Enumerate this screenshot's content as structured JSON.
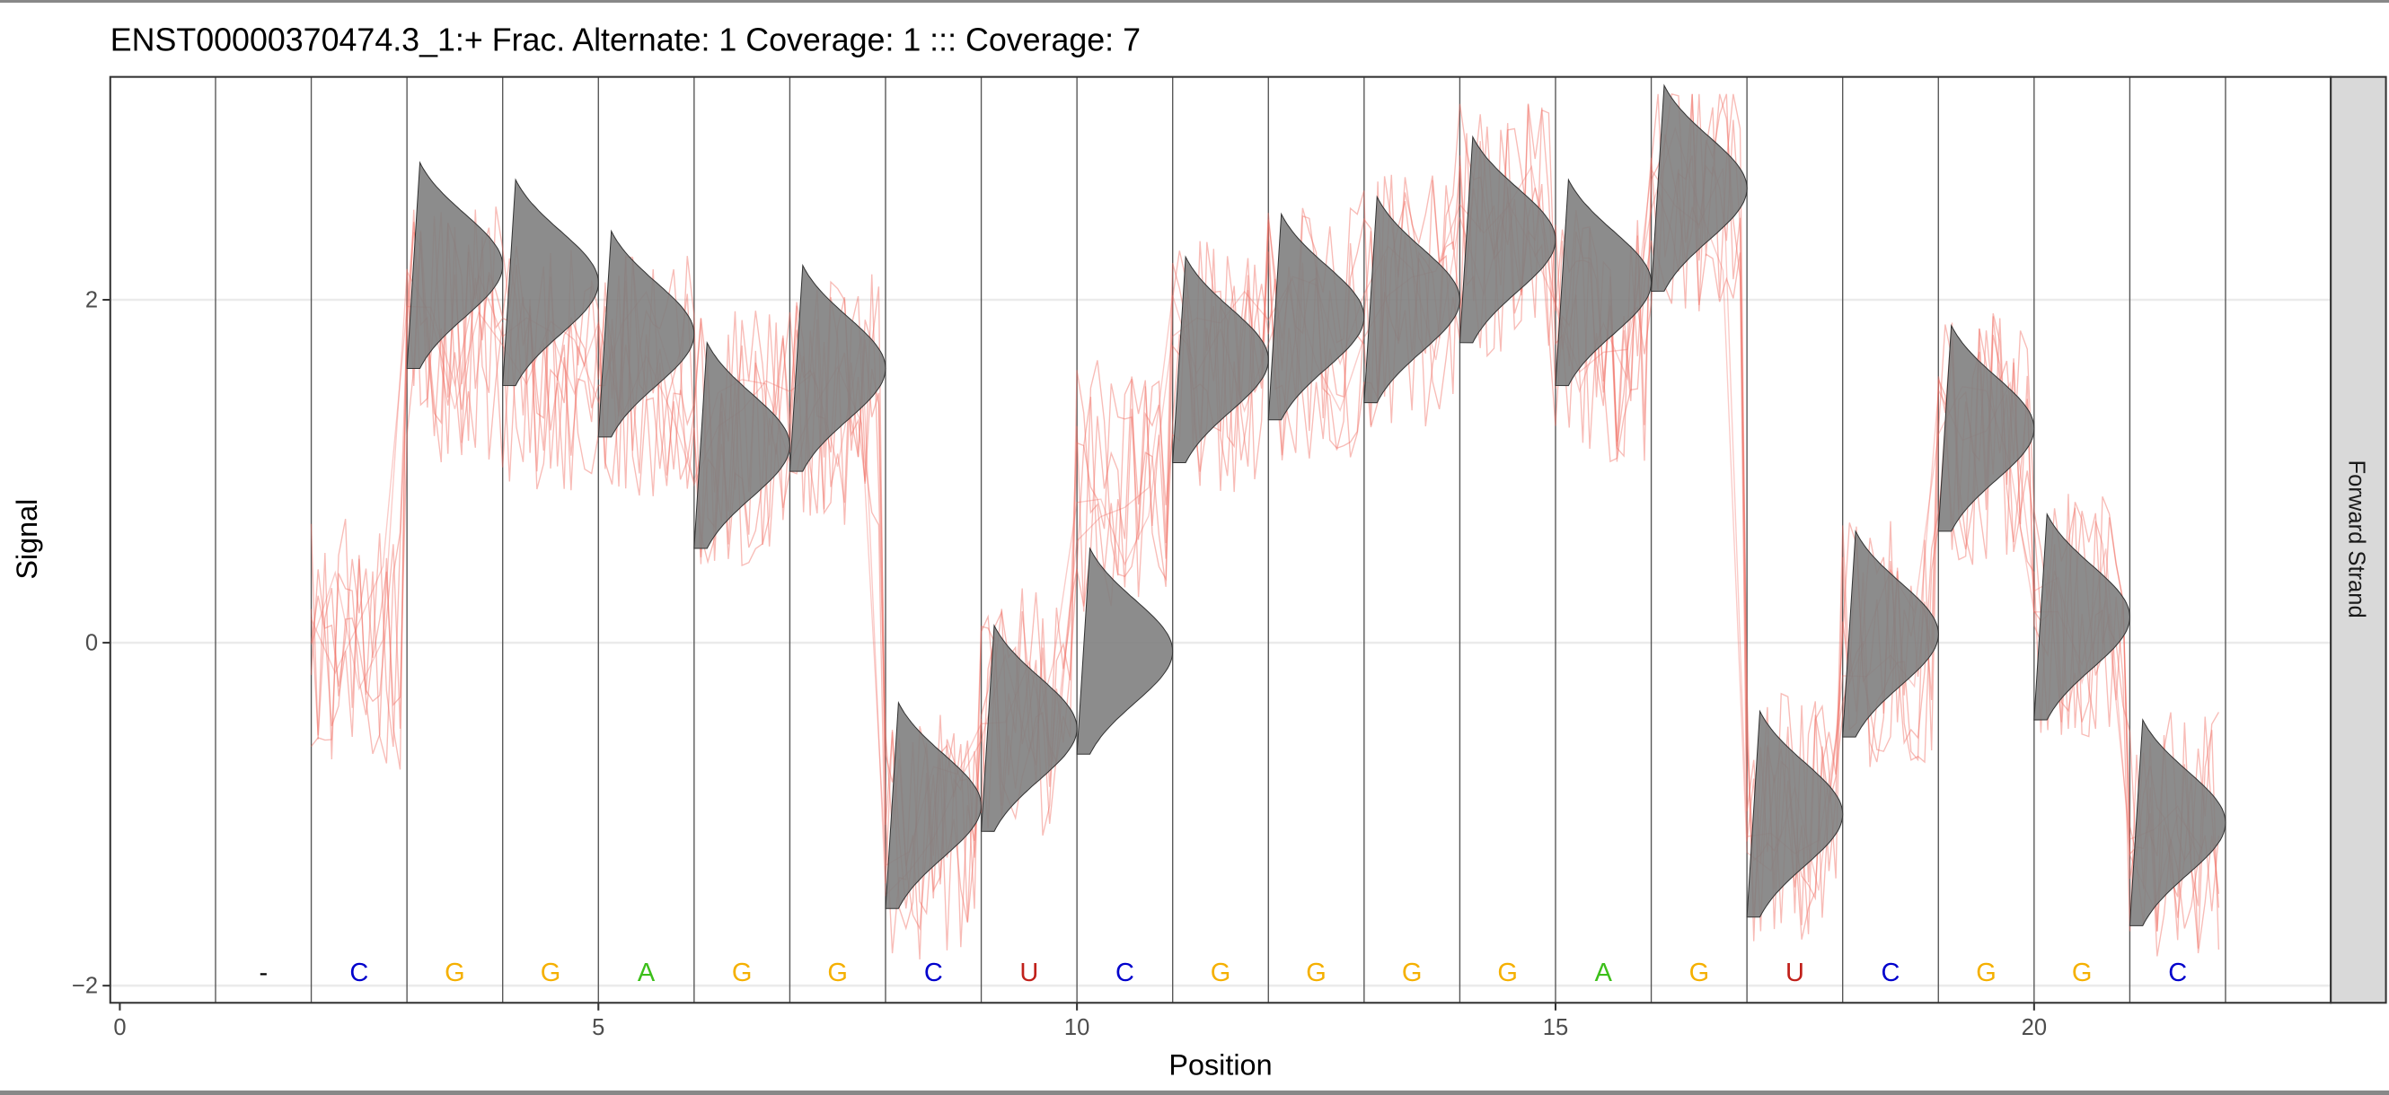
{
  "chart_data": {
    "type": "line",
    "title": "ENST00000370474.3_1:+ Frac. Alternate: 1  Coverage: 1 ::: Coverage: 7",
    "xlabel": "Position",
    "ylabel": "Signal",
    "facet_label": "Forward Strand",
    "xlim": [
      -0.1,
      23.1
    ],
    "ylim": [
      -2.1,
      3.3
    ],
    "x_ticks": [
      0,
      5,
      10,
      15,
      20
    ],
    "x_tick_labels": [
      "0",
      "5",
      "10",
      "15",
      "20"
    ],
    "y_ticks": [
      -2,
      0,
      2
    ],
    "y_tick_labels": [
      "−2",
      "0",
      "2"
    ],
    "base_boundaries": [
      1,
      2,
      3,
      4,
      5,
      6,
      7,
      8,
      9,
      10,
      11,
      12,
      13,
      14,
      15,
      16,
      17,
      18,
      19,
      20,
      21,
      22
    ],
    "bases": [
      {
        "pos": 1.5,
        "base": "-"
      },
      {
        "pos": 2.5,
        "base": "C"
      },
      {
        "pos": 3.5,
        "base": "G"
      },
      {
        "pos": 4.5,
        "base": "G"
      },
      {
        "pos": 5.5,
        "base": "A"
      },
      {
        "pos": 6.5,
        "base": "G"
      },
      {
        "pos": 7.5,
        "base": "G"
      },
      {
        "pos": 8.5,
        "base": "C"
      },
      {
        "pos": 9.5,
        "base": "U"
      },
      {
        "pos": 10.5,
        "base": "C"
      },
      {
        "pos": 11.5,
        "base": "G"
      },
      {
        "pos": 12.5,
        "base": "G"
      },
      {
        "pos": 13.5,
        "base": "G"
      },
      {
        "pos": 14.5,
        "base": "G"
      },
      {
        "pos": 15.5,
        "base": "A"
      },
      {
        "pos": 16.5,
        "base": "G"
      },
      {
        "pos": 17.5,
        "base": "U"
      },
      {
        "pos": 18.5,
        "base": "C"
      },
      {
        "pos": 19.5,
        "base": "G"
      },
      {
        "pos": 20.5,
        "base": "G"
      },
      {
        "pos": 21.5,
        "base": "C"
      }
    ],
    "base_colors": {
      "-": "#000000",
      "C": "#0000cc",
      "G": "#f5b000",
      "A": "#3cbf1a",
      "U": "#c0201a"
    },
    "expected_levels": [
      {
        "start": 3,
        "mean": 2.2,
        "sd": 0.3
      },
      {
        "start": 4,
        "mean": 2.1,
        "sd": 0.3
      },
      {
        "start": 5,
        "mean": 1.8,
        "sd": 0.3
      },
      {
        "start": 6,
        "mean": 1.15,
        "sd": 0.3
      },
      {
        "start": 7,
        "mean": 1.6,
        "sd": 0.3
      },
      {
        "start": 8,
        "mean": -0.95,
        "sd": 0.3
      },
      {
        "start": 9,
        "mean": -0.5,
        "sd": 0.3
      },
      {
        "start": 10,
        "mean": -0.05,
        "sd": 0.3
      },
      {
        "start": 11,
        "mean": 1.65,
        "sd": 0.3
      },
      {
        "start": 12,
        "mean": 1.9,
        "sd": 0.3
      },
      {
        "start": 13,
        "mean": 2.0,
        "sd": 0.3
      },
      {
        "start": 14,
        "mean": 2.35,
        "sd": 0.3
      },
      {
        "start": 15,
        "mean": 2.1,
        "sd": 0.3
      },
      {
        "start": 16,
        "mean": 2.65,
        "sd": 0.3
      },
      {
        "start": 17,
        "mean": -1.0,
        "sd": 0.3
      },
      {
        "start": 18,
        "mean": 0.05,
        "sd": 0.3
      },
      {
        "start": 19,
        "mean": 1.25,
        "sd": 0.3
      },
      {
        "start": 20,
        "mean": 0.15,
        "sd": 0.3
      },
      {
        "start": 21,
        "mean": -1.05,
        "sd": 0.3
      }
    ],
    "observed_levels": [
      {
        "start": 2,
        "mean": 0.0
      },
      {
        "start": 3,
        "mean": 1.8
      },
      {
        "start": 4,
        "mean": 1.6
      },
      {
        "start": 5,
        "mean": 1.6
      },
      {
        "start": 6,
        "mean": 1.2
      },
      {
        "start": 7,
        "mean": 1.4
      },
      {
        "start": 8,
        "mean": -1.1
      },
      {
        "start": 9,
        "mean": -0.4
      },
      {
        "start": 10,
        "mean": 0.9
      },
      {
        "start": 11,
        "mean": 1.6
      },
      {
        "start": 12,
        "mean": 1.8
      },
      {
        "start": 13,
        "mean": 2.0
      },
      {
        "start": 14,
        "mean": 2.4
      },
      {
        "start": 15,
        "mean": 1.8
      },
      {
        "start": 16,
        "mean": 2.6
      },
      {
        "start": 17,
        "mean": -1.0
      },
      {
        "start": 18,
        "mean": 0.0
      },
      {
        "start": 19,
        "mean": 1.2
      },
      {
        "start": 20,
        "mean": 0.2
      },
      {
        "start": 21,
        "mean": -1.1
      }
    ],
    "n_reads": 7,
    "colors": {
      "density_fill": "#808080",
      "signal": "#f06a60",
      "grid": "#ebebeb"
    }
  }
}
